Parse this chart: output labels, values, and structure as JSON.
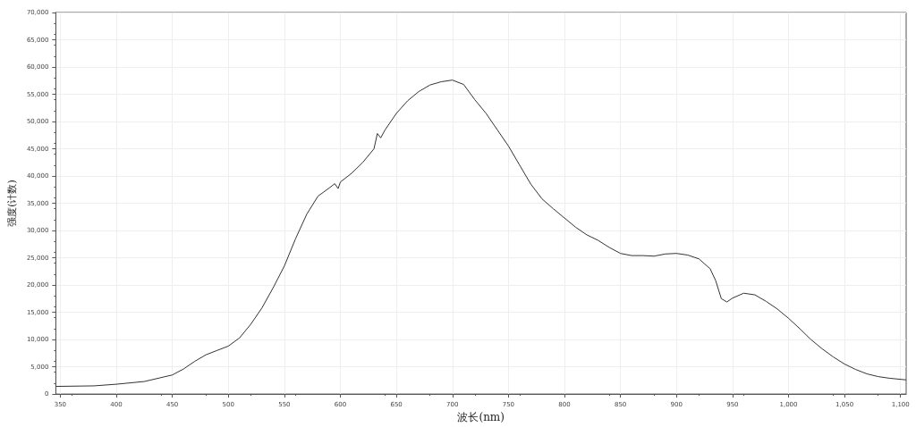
{
  "chart_data": {
    "type": "line",
    "xlabel": "波长(nm)",
    "ylabel": "强度(计数)",
    "x": [
      346,
      380,
      400,
      425,
      450,
      460,
      470,
      480,
      490,
      500,
      510,
      520,
      530,
      540,
      550,
      560,
      570,
      580,
      590,
      595,
      598,
      600,
      610,
      620,
      630,
      633,
      636,
      640,
      650,
      660,
      670,
      680,
      690,
      700,
      710,
      720,
      730,
      740,
      750,
      760,
      770,
      780,
      790,
      800,
      810,
      820,
      830,
      840,
      850,
      860,
      870,
      880,
      890,
      900,
      910,
      920,
      930,
      935,
      940,
      945,
      950,
      960,
      970,
      980,
      990,
      1000,
      1010,
      1020,
      1030,
      1040,
      1050,
      1060,
      1070,
      1080,
      1090,
      1105
    ],
    "series": [
      {
        "color": "#333333",
        "values": [
          1400,
          1500,
          1800,
          2300,
          3500,
          4600,
          6000,
          7200,
          8000,
          8800,
          10300,
          12800,
          15800,
          19500,
          23500,
          28500,
          33000,
          36300,
          37800,
          38600,
          37700,
          38900,
          40500,
          42500,
          45000,
          47800,
          47000,
          48500,
          51500,
          53800,
          55500,
          56700,
          57300,
          57600,
          56800,
          54000,
          51500,
          48500,
          45500,
          42000,
          38500,
          35800,
          34000,
          32300,
          30600,
          29200,
          28200,
          26900,
          25800,
          25400,
          25400,
          25300,
          25700,
          25800,
          25500,
          24800,
          23000,
          20800,
          17500,
          16900,
          17600,
          18500,
          18200,
          17000,
          15600,
          13900,
          12000,
          10000,
          8300,
          6800,
          5500,
          4500,
          3700,
          3200,
          2900,
          2600
        ]
      }
    ],
    "xlim": [
      346,
      1105
    ],
    "xticks": [
      350,
      400,
      450,
      500,
      550,
      600,
      650,
      700,
      750,
      800,
      850,
      900,
      950,
      {
        "value": 1000,
        "label": "1,000"
      },
      {
        "value": 1050,
        "label": "1,050"
      },
      {
        "value": 1100,
        "label": "1,100"
      }
    ],
    "ylim": [
      0,
      70000
    ],
    "yticks": [
      0,
      {
        "value": 5000,
        "label": "5,000"
      },
      {
        "value": 10000,
        "label": "10,000"
      },
      {
        "value": 15000,
        "label": "15,000"
      },
      {
        "value": 20000,
        "label": "20,000"
      },
      {
        "value": 25000,
        "label": "25,000"
      },
      {
        "value": 30000,
        "label": "30,000"
      },
      {
        "value": 35000,
        "label": "35,000"
      },
      {
        "value": 40000,
        "label": "40,000"
      },
      {
        "value": 45000,
        "label": "45,000"
      },
      {
        "value": 50000,
        "label": "50,000"
      },
      {
        "value": 55000,
        "label": "55,000"
      },
      {
        "value": 60000,
        "label": "60,000"
      },
      {
        "value": 65000,
        "label": "65,000"
      },
      {
        "value": 70000,
        "label": "70,000"
      }
    ],
    "grid": true,
    "marker": "none",
    "line_style": "solid"
  }
}
